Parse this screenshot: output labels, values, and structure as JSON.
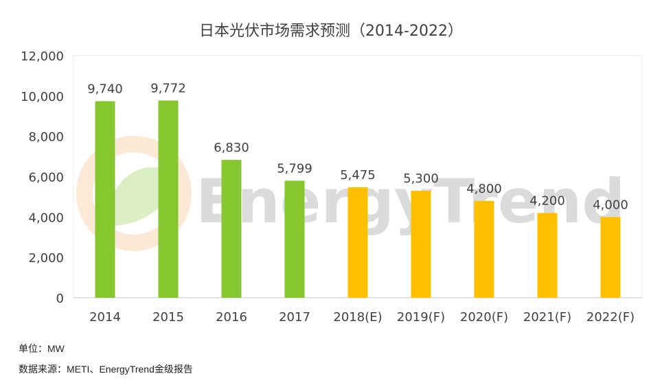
{
  "chart_data": {
    "type": "bar",
    "title": "日本光伏市场需求预测（2014-2022）",
    "categories": [
      "2014",
      "2015",
      "2016",
      "2017",
      "2018(E)",
      "2019(F)",
      "2020(F)",
      "2021(F)",
      "2022(F)"
    ],
    "values": [
      9740,
      9772,
      6830,
      5799,
      5475,
      5300,
      4800,
      4200,
      4000
    ],
    "data_labels": [
      "9,740",
      "9,772",
      "6,830",
      "5,799",
      "5,475",
      "5,300",
      "4,800",
      "4,200",
      "4,000"
    ],
    "bar_colors": [
      "#86C62E",
      "#86C62E",
      "#86C62E",
      "#86C62E",
      "#FFC000",
      "#FFC000",
      "#FFC000",
      "#FFC000",
      "#FFC000"
    ],
    "y_ticks": [
      0,
      2000,
      4000,
      6000,
      8000,
      10000,
      12000
    ],
    "y_tick_labels": [
      "0",
      "2,000",
      "4,000",
      "6,000",
      "8,000",
      "10,000",
      "12,000"
    ],
    "ylim": [
      0,
      12000
    ],
    "xlabel": "",
    "ylabel": "",
    "grid": false,
    "legend": "none"
  },
  "watermark": "EnergyTrend",
  "notes": {
    "unit": "单位：MW",
    "source": "数据来源：METI、EnergyTrend金级报告"
  }
}
